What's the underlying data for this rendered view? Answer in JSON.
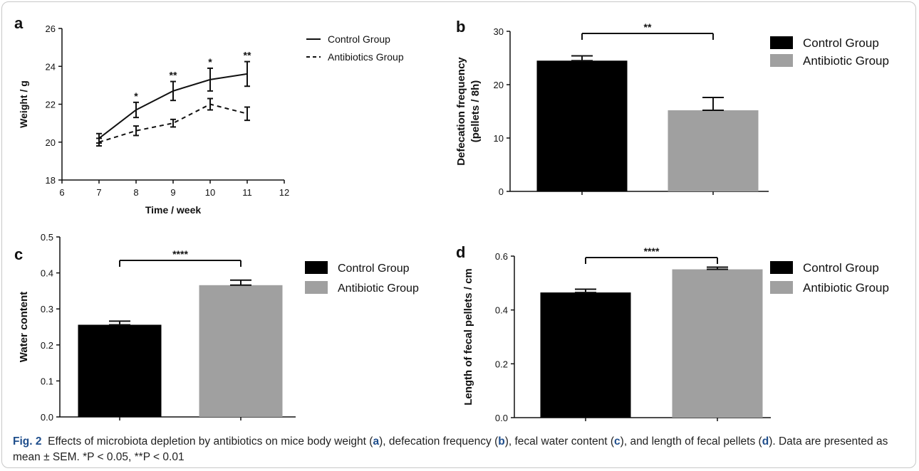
{
  "chart_data": [
    {
      "panel": "a",
      "type": "line",
      "xlabel": "Time / week",
      "ylabel": "Weight / g",
      "xlim": [
        6,
        12
      ],
      "ylim": [
        18,
        26
      ],
      "xticks": [
        6,
        7,
        8,
        9,
        10,
        11,
        12
      ],
      "yticks": [
        18,
        20,
        22,
        24,
        26
      ],
      "legend_position": "top-right",
      "series": [
        {
          "name": "Control Group",
          "style": "solid",
          "x": [
            7,
            8,
            9,
            10,
            11
          ],
          "y": [
            20.2,
            21.7,
            22.7,
            23.3,
            23.6
          ],
          "err": [
            0.25,
            0.4,
            0.5,
            0.6,
            0.65
          ]
        },
        {
          "name": "Antibiotics Group",
          "style": "dashed",
          "x": [
            7,
            8,
            9,
            10,
            11
          ],
          "y": [
            20.0,
            20.6,
            21.0,
            22.0,
            21.5
          ],
          "err": [
            0.2,
            0.25,
            0.2,
            0.3,
            0.35
          ]
        }
      ],
      "annotations": [
        {
          "x": 8,
          "y": 22.1,
          "text": "*"
        },
        {
          "x": 9,
          "y": 23.2,
          "text": "**"
        },
        {
          "x": 10,
          "y": 23.9,
          "text": "*"
        },
        {
          "x": 11,
          "y": 24.25,
          "text": "**"
        }
      ]
    },
    {
      "panel": "b",
      "type": "bar",
      "ylabel": "Defecation frequency (pellets / 8h)",
      "ylabel_lines": [
        "Defecation frequency",
        "(pellets / 8h)"
      ],
      "ylim": [
        0,
        30
      ],
      "yticks": [
        0,
        10,
        20,
        30
      ],
      "legend_position": "right",
      "series": [
        {
          "name": "Control Group",
          "value": 24.5,
          "err": 0.9,
          "color": "#000000"
        },
        {
          "name": "Antibiotic Group",
          "value": 15.2,
          "err": 2.4,
          "color": "#a0a0a0"
        }
      ],
      "significance": "**"
    },
    {
      "panel": "c",
      "type": "bar",
      "ylabel": "Water content",
      "ylim": [
        0,
        0.5
      ],
      "yticks": [
        "0.0",
        "0.1",
        "0.2",
        "0.3",
        "0.4",
        "0.5"
      ],
      "legend_position": "right",
      "series": [
        {
          "name": "Control Group",
          "value": 0.256,
          "err": 0.01,
          "color": "#000000"
        },
        {
          "name": "Antibiotic Group",
          "value": 0.366,
          "err": 0.014,
          "color": "#a0a0a0"
        }
      ],
      "significance": "****"
    },
    {
      "panel": "d",
      "type": "bar",
      "ylabel": "Length of fecal pellets / cm",
      "ylim": [
        0,
        0.6
      ],
      "yticks": [
        "0.0",
        "0.2",
        "0.4",
        "0.6"
      ],
      "legend_position": "right",
      "series": [
        {
          "name": "Control Group",
          "value": 0.465,
          "err": 0.012,
          "color": "#000000"
        },
        {
          "name": "Antibiotic Group",
          "value": 0.551,
          "err": 0.008,
          "color": "#a0a0a0"
        }
      ],
      "significance": "****"
    }
  ],
  "caption": {
    "label": "Fig. 2",
    "parts": [
      "Effects of microbiota depletion by antibiotics on mice body weight (",
      "a",
      "), defecation frequency (",
      "b",
      "), fecal water content (",
      "c",
      "), and length of fecal pellets (",
      "d",
      "). Data are presented as mean ± SEM. *P < 0.05, **P < 0.01"
    ]
  }
}
